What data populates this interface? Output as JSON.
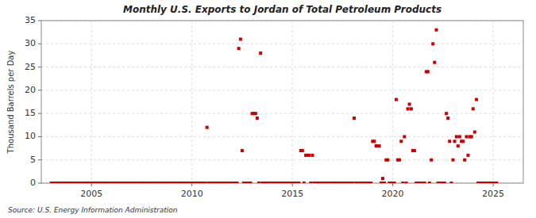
{
  "chart_data": {
    "type": "scatter",
    "title": "Monthly U.S. Exports to Jordan of Total Petroleum Products",
    "ylabel": "Thousand Barrels per Day",
    "source": "Source: U.S. Energy Information Administration",
    "color": "#cc0000",
    "marker": "square",
    "grid": true,
    "xlim": [
      2002.5,
      2026.5
    ],
    "xticks": [
      2005,
      2010,
      2015,
      2020,
      2025
    ],
    "ylim": [
      0,
      35
    ],
    "yticks": [
      0,
      5,
      10,
      15,
      20,
      25,
      30,
      35
    ],
    "x": [
      2003.0,
      2003.08,
      2003.17,
      2003.25,
      2003.33,
      2003.42,
      2003.5,
      2003.58,
      2003.67,
      2003.75,
      2003.83,
      2003.92,
      2004.0,
      2004.08,
      2004.17,
      2004.25,
      2004.33,
      2004.42,
      2004.5,
      2004.58,
      2004.67,
      2004.75,
      2004.83,
      2004.92,
      2005.0,
      2005.08,
      2005.17,
      2005.25,
      2005.33,
      2005.42,
      2005.5,
      2005.58,
      2005.67,
      2005.75,
      2005.83,
      2005.92,
      2006.0,
      2006.08,
      2006.17,
      2006.25,
      2006.33,
      2006.42,
      2006.5,
      2006.58,
      2006.67,
      2006.75,
      2006.83,
      2006.92,
      2007.0,
      2007.08,
      2007.17,
      2007.25,
      2007.33,
      2007.42,
      2007.5,
      2007.58,
      2007.67,
      2007.75,
      2007.83,
      2007.92,
      2008.0,
      2008.08,
      2008.17,
      2008.25,
      2008.33,
      2008.42,
      2008.5,
      2008.58,
      2008.67,
      2008.75,
      2008.83,
      2008.92,
      2009.0,
      2009.08,
      2009.17,
      2009.25,
      2009.33,
      2009.42,
      2009.5,
      2009.58,
      2009.67,
      2009.75,
      2009.83,
      2009.92,
      2010.0,
      2010.08,
      2010.17,
      2010.25,
      2010.33,
      2010.42,
      2010.5,
      2010.58,
      2010.67,
      2010.75,
      2010.83,
      2010.92,
      2011.0,
      2011.08,
      2011.17,
      2011.25,
      2011.33,
      2011.42,
      2011.5,
      2011.58,
      2011.67,
      2011.75,
      2011.83,
      2011.92,
      2012.0,
      2012.08,
      2012.17,
      2012.25,
      2012.33,
      2012.42,
      2012.5,
      2012.58,
      2012.67,
      2012.75,
      2012.83,
      2012.92,
      2013.0,
      2013.08,
      2013.17,
      2013.25,
      2013.33,
      2013.42,
      2013.5,
      2013.58,
      2013.67,
      2013.75,
      2013.83,
      2013.92,
      2014.0,
      2014.08,
      2014.17,
      2014.25,
      2014.33,
      2014.42,
      2014.5,
      2014.58,
      2014.67,
      2014.75,
      2014.83,
      2014.92,
      2015.0,
      2015.08,
      2015.17,
      2015.25,
      2015.33,
      2015.42,
      2015.5,
      2015.58,
      2015.67,
      2015.75,
      2015.83,
      2015.92,
      2016.0,
      2016.08,
      2016.17,
      2016.25,
      2016.33,
      2016.42,
      2016.5,
      2016.58,
      2016.67,
      2016.75,
      2016.83,
      2016.92,
      2017.0,
      2017.08,
      2017.17,
      2017.25,
      2017.33,
      2017.42,
      2017.5,
      2017.58,
      2017.67,
      2017.75,
      2017.83,
      2017.92,
      2018.0,
      2018.08,
      2018.17,
      2018.25,
      2018.33,
      2018.42,
      2018.5,
      2018.58,
      2018.67,
      2018.75,
      2018.83,
      2018.92,
      2019.0,
      2019.08,
      2019.17,
      2019.25,
      2019.33,
      2019.42,
      2019.5,
      2019.58,
      2019.67,
      2019.75,
      2019.83,
      2019.92,
      2020.0,
      2020.08,
      2020.17,
      2020.25,
      2020.33,
      2020.42,
      2020.5,
      2020.58,
      2020.67,
      2020.75,
      2020.83,
      2020.92,
      2021.0,
      2021.08,
      2021.17,
      2021.25,
      2021.33,
      2021.42,
      2021.5,
      2021.58,
      2021.67,
      2021.75,
      2021.83,
      2021.92,
      2022.0,
      2022.08,
      2022.17,
      2022.25,
      2022.33,
      2022.42,
      2022.5,
      2022.58,
      2022.67,
      2022.75,
      2022.83,
      2022.92,
      2023.0,
      2023.08,
      2023.17,
      2023.25,
      2023.33,
      2023.42,
      2023.5,
      2023.58,
      2023.67,
      2023.75,
      2023.83,
      2023.92,
      2024.0,
      2024.08,
      2024.17,
      2024.25,
      2024.33,
      2024.42,
      2024.5,
      2024.58,
      2024.67,
      2024.75,
      2024.83,
      2024.92,
      2025.0,
      2025.08,
      2025.17
    ],
    "values": [
      0,
      0,
      0,
      0,
      0,
      0,
      0,
      0,
      0,
      0,
      0,
      0,
      0,
      0,
      0,
      0,
      0,
      0,
      0,
      0,
      0,
      0,
      0,
      0,
      0,
      0,
      0,
      0,
      0,
      0,
      0,
      0,
      0,
      0,
      0,
      0,
      0,
      0,
      0,
      0,
      0,
      0,
      0,
      0,
      0,
      0,
      0,
      0,
      0,
      0,
      0,
      0,
      0,
      0,
      0,
      0,
      0,
      0,
      0,
      0,
      0,
      0,
      0,
      0,
      0,
      0,
      0,
      0,
      0,
      0,
      0,
      0,
      0,
      0,
      0,
      0,
      0,
      0,
      0,
      0,
      0,
      0,
      0,
      0,
      0,
      0,
      0,
      0,
      0,
      0,
      0,
      0,
      0,
      12,
      0,
      0,
      0,
      0,
      0,
      0,
      0,
      0,
      0,
      0,
      0,
      0,
      0,
      0,
      0,
      0,
      0,
      0,
      29,
      31,
      7,
      0,
      0,
      0,
      0,
      0,
      15,
      15,
      15,
      14,
      0,
      28,
      0,
      0,
      0,
      0,
      0,
      0,
      0,
      0,
      0,
      0,
      0,
      0,
      0,
      0,
      0,
      0,
      0,
      0,
      0,
      0,
      0,
      0,
      0,
      7,
      7,
      0,
      6,
      6,
      6,
      0,
      6,
      0,
      0,
      0,
      0,
      0,
      0,
      0,
      0,
      0,
      0,
      0,
      0,
      0,
      0,
      0,
      0,
      0,
      0,
      0,
      0,
      0,
      0,
      0,
      0,
      14,
      0,
      0,
      0,
      0,
      0,
      0,
      0,
      0,
      0,
      0,
      9,
      9,
      8,
      8,
      8,
      0,
      1,
      0,
      5,
      5,
      0,
      0,
      0,
      0,
      18,
      5,
      5,
      9,
      0,
      10,
      0,
      16,
      17,
      16,
      7,
      7,
      0,
      0,
      0,
      0,
      0,
      0,
      24,
      24,
      0,
      5,
      30,
      26,
      33,
      0,
      0,
      0,
      0,
      0,
      15,
      14,
      9,
      0,
      5,
      9,
      10,
      8,
      10,
      9,
      9,
      5,
      10,
      6,
      10,
      10,
      16,
      11,
      18,
      0,
      0,
      0,
      0,
      0,
      0,
      0,
      0,
      0,
      0,
      0,
      0
    ]
  }
}
